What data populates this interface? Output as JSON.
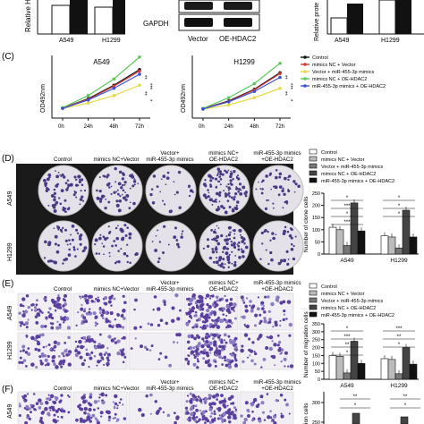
{
  "panel_top": {
    "ylabel_left": "Relative HD",
    "bars_left_categories": [
      "A549",
      "H1299"
    ],
    "gapdh_label": "GAPDH",
    "blot_lanes": [
      "Vector",
      "OE-HDAC2"
    ],
    "ylabel_right": "Relative prote",
    "bars_right_categories": [
      "A549",
      "H1299"
    ]
  },
  "panel_c": {
    "letter": "(C)",
    "ylabel": "OD492nm",
    "xticks": [
      "0h",
      "24h",
      "48h",
      "72h"
    ],
    "chart_a549_title": "A549",
    "chart_h1299_title": "H1299",
    "sig_a549": [
      "**",
      "***",
      "**",
      "*"
    ],
    "sig_h1299": [
      "**",
      "***",
      "**",
      "*"
    ],
    "legend": [
      "Control",
      "mimics NC + Vector",
      "Vector + miR-455-3p mimics",
      "mimics NC + OE-HDAC2",
      "miR-455-3p mimics + OE-HDAC2"
    ],
    "colors": [
      "#111111",
      "#d23a3a",
      "#e6d84a",
      "#5cc85c",
      "#3a4fd6"
    ]
  },
  "panel_d": {
    "letter": "(D)",
    "columns": [
      "Control",
      "mimics NC+Vector",
      "Vector+\nmiR-455-3p mimics",
      "mimics NC+\nOE-HDAC2",
      "miR-455-3p mimics\n+OE-HDAC2"
    ],
    "rows": [
      "A549",
      "H1299"
    ],
    "legend": [
      "Control",
      "mimics NC + Vector",
      "Vector + miR-455-3p mimics",
      "mimics NC + OE-HDAC2",
      "miR-455-3p mimics + OE-HDAC2"
    ],
    "ylabel": "Number of clone cells",
    "yticks": [
      "0",
      "50",
      "100",
      "150",
      "200",
      "250"
    ],
    "xcats": [
      "A549",
      "H1299"
    ],
    "sig": [
      "*",
      "***",
      "*",
      "***",
      "*",
      "*",
      "*"
    ]
  },
  "panel_e": {
    "letter": "(E)",
    "columns": [
      "Control",
      "mimics NC+Vector",
      "Vector+\nmiR-455-3p mimics",
      "mimics NC+\nOE-HDAC2",
      "miR-455-3p mimics\n+OE-HDAC2"
    ],
    "rows": [
      "A549",
      "H1299"
    ],
    "legend": [
      "Control",
      "mimics NC + Vector",
      "Vector + miR-455-3p mimics",
      "mimics NC + OE-HDAC2",
      "miR-455-3p mimics + OE-HDAC2"
    ],
    "ylabel": "Number of migration cells",
    "yticks": [
      "0",
      "50",
      "100",
      "150",
      "200",
      "250",
      "300",
      "350"
    ],
    "xcats": [
      "A549",
      "H1299"
    ],
    "sig": [
      "*",
      "***",
      "**",
      "*",
      "***",
      "**",
      "*"
    ]
  },
  "panel_f": {
    "letter": "(F)",
    "columns": [
      "Control",
      "mimics NC+Vector",
      "Vector+\nmiR-455-3p mimics",
      "mimics NC+\nOE-HDAC2",
      "miR-455-3p mimics\n+OE-HDAC2"
    ],
    "rows": [
      "A549"
    ],
    "ylabel": "ion cells",
    "yticks": [
      "250",
      "300"
    ],
    "sig": [
      "**",
      "*",
      "**",
      "*"
    ]
  },
  "chart_data": [
    {
      "type": "line",
      "title": "A549",
      "xlabel": "",
      "ylabel": "OD492nm",
      "x": [
        "0h",
        "24h",
        "48h",
        "72h"
      ],
      "series": [
        {
          "name": "Control",
          "values": [
            0.32,
            0.62,
            1.05,
            1.55
          ]
        },
        {
          "name": "mimics NC + Vector",
          "values": [
            0.32,
            0.6,
            1.02,
            1.5
          ]
        },
        {
          "name": "Vector + miR-455-3p mimics",
          "values": [
            0.3,
            0.48,
            0.72,
            1.05
          ]
        },
        {
          "name": "mimics NC + OE-HDAC2",
          "values": [
            0.33,
            0.72,
            1.25,
            1.95
          ]
        },
        {
          "name": "miR-455-3p mimics + OE-HDAC2",
          "values": [
            0.31,
            0.58,
            0.95,
            1.4
          ]
        }
      ]
    },
    {
      "type": "line",
      "title": "H1299",
      "xlabel": "",
      "ylabel": "OD492nm",
      "x": [
        "0h",
        "24h",
        "48h",
        "72h"
      ],
      "series": [
        {
          "name": "Control",
          "values": [
            0.3,
            0.55,
            0.92,
            1.45
          ]
        },
        {
          "name": "mimics NC + Vector",
          "values": [
            0.3,
            0.53,
            0.9,
            1.42
          ]
        },
        {
          "name": "Vector + miR-455-3p mimics",
          "values": [
            0.28,
            0.42,
            0.65,
            0.95
          ]
        },
        {
          "name": "mimics NC + OE-HDAC2",
          "values": [
            0.31,
            0.65,
            1.1,
            1.75
          ]
        },
        {
          "name": "miR-455-3p mimics + OE-HDAC2",
          "values": [
            0.29,
            0.52,
            0.85,
            1.3
          ]
        }
      ]
    },
    {
      "type": "bar",
      "ylabel": "Number of clone cells",
      "categories": [
        "A549",
        "H1299"
      ],
      "ylim": [
        0,
        250
      ],
      "series": [
        {
          "name": "Control",
          "values": [
            110,
            75
          ]
        },
        {
          "name": "mimics NC + Vector",
          "values": [
            100,
            70
          ]
        },
        {
          "name": "Vector + miR-455-3p mimics",
          "values": [
            35,
            25
          ]
        },
        {
          "name": "mimics NC + OE-HDAC2",
          "values": [
            210,
            180
          ]
        },
        {
          "name": "miR-455-3p mimics + OE-HDAC2",
          "values": [
            95,
            70
          ]
        }
      ]
    },
    {
      "type": "bar",
      "ylabel": "Number of migration cells",
      "categories": [
        "A549",
        "H1299"
      ],
      "ylim": [
        0,
        350
      ],
      "series": [
        {
          "name": "Control",
          "values": [
            150,
            130
          ]
        },
        {
          "name": "mimics NC + Vector",
          "values": [
            145,
            125
          ]
        },
        {
          "name": "Vector + miR-455-3p mimics",
          "values": [
            40,
            35
          ]
        },
        {
          "name": "mimics NC + OE-HDAC2",
          "values": [
            240,
            200
          ]
        },
        {
          "name": "miR-455-3p mimics + OE-HDAC2",
          "values": [
            100,
            95
          ]
        }
      ]
    }
  ]
}
